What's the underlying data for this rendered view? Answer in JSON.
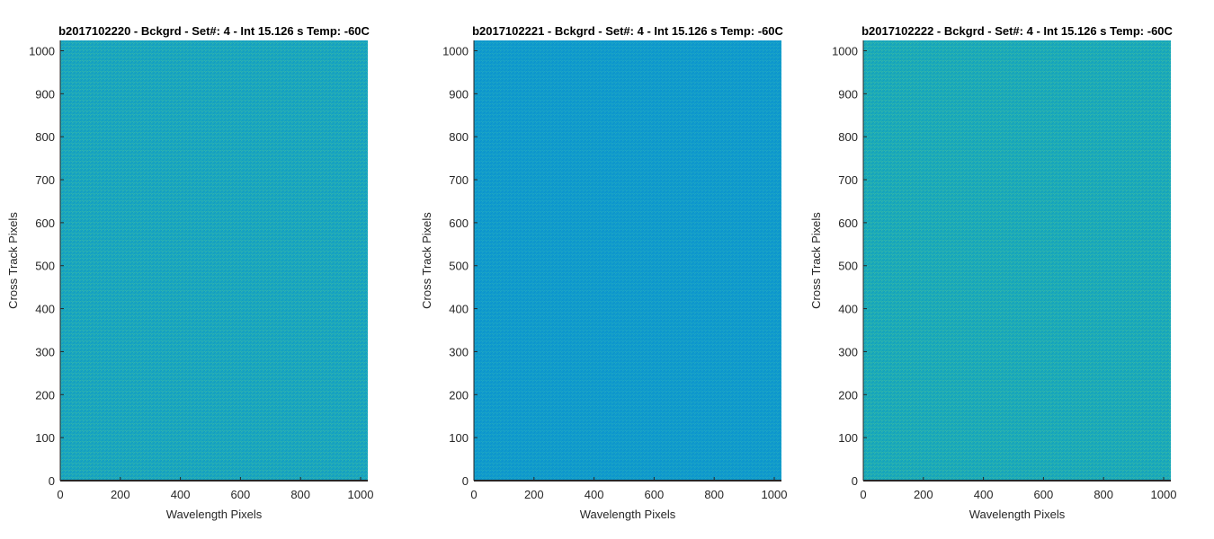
{
  "chart_data": [
    {
      "type": "heatmap",
      "title": "b2017102220 - Bckgrd - Set#: 4 - Int 15.126 s Temp: -60C",
      "xlabel": "Wavelength Pixels",
      "ylabel": "Cross Track Pixels",
      "xlim": [
        0,
        1024
      ],
      "ylim": [
        0,
        1024
      ],
      "xticks": [
        0,
        200,
        400,
        600,
        800,
        1000
      ],
      "yticks": [
        0,
        100,
        200,
        300,
        400,
        500,
        600,
        700,
        800,
        900,
        1000
      ],
      "colors": {
        "base": "#1ba6bd",
        "light": "#2fb3ae",
        "dark": "#109bc6"
      },
      "grid": false
    },
    {
      "type": "heatmap",
      "title": "b2017102221 - Bckgrd - Set#: 4 - Int 15.126 s Temp: -60C",
      "xlabel": "Wavelength Pixels",
      "ylabel": "Cross Track Pixels",
      "xlim": [
        0,
        1024
      ],
      "ylim": [
        0,
        1024
      ],
      "xticks": [
        0,
        200,
        400,
        600,
        800,
        1000
      ],
      "yticks": [
        0,
        100,
        200,
        300,
        400,
        500,
        600,
        700,
        800,
        900,
        1000
      ],
      "colors": {
        "base": "#119bcb",
        "light": "#1ea6c4",
        "dark": "#0a92cf"
      },
      "grid": false
    },
    {
      "type": "heatmap",
      "title": "b2017102222 - Bckgrd - Set#: 4 - Int 15.126 s Temp: -60C",
      "xlabel": "Wavelength Pixels",
      "ylabel": "Cross Track Pixels",
      "xlim": [
        0,
        1024
      ],
      "ylim": [
        0,
        1024
      ],
      "xticks": [
        0,
        200,
        400,
        600,
        800,
        1000
      ],
      "yticks": [
        0,
        100,
        200,
        300,
        400,
        500,
        600,
        700,
        800,
        900,
        1000
      ],
      "colors": {
        "base": "#1caab8",
        "light": "#33b6a8",
        "dark": "#129fc0"
      },
      "grid": false
    }
  ]
}
